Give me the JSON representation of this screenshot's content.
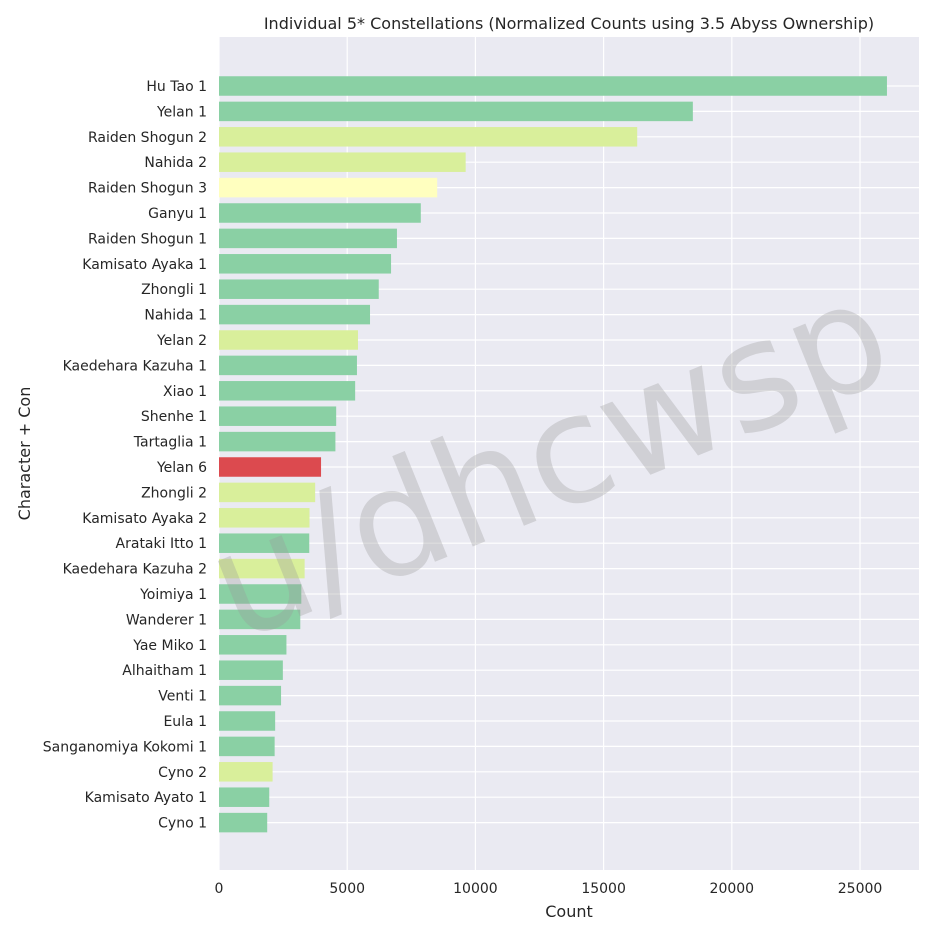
{
  "chart_data": {
    "type": "bar",
    "orientation": "horizontal",
    "title": "Individual 5* Constellations (Normalized Counts using 3.5 Abyss Ownership)",
    "xlabel": "Count",
    "ylabel": "Character + Con",
    "xlim": [
      0,
      27300
    ],
    "xticks": [
      0,
      5000,
      10000,
      15000,
      20000,
      25000
    ],
    "grid": true,
    "watermark": "u/dhcwsp",
    "colors": {
      "background": "#eaeaf2",
      "grid": "#ffffff",
      "c1": "#8ad0a4",
      "c2": "#d9ef9b",
      "c3": "#ffffbf",
      "c6": "#dc4a4f"
    },
    "categories": [
      "Hu Tao 1",
      "Yelan 1",
      "Raiden Shogun 2",
      "Nahida 2",
      "Raiden Shogun 3",
      "Ganyu 1",
      "Raiden Shogun 1",
      "Kamisato Ayaka 1",
      "Zhongli 1",
      "Nahida 1",
      "Yelan 2",
      "Kaedehara Kazuha 1",
      "Xiao 1",
      "Shenhe 1",
      "Tartaglia 1",
      "Yelan 6",
      "Zhongli 2",
      "Kamisato Ayaka 2",
      "Arataki Itto 1",
      "Kaedehara Kazuha 2",
      "Yoimiya 1",
      "Wanderer 1",
      "Yae Miko 1",
      "Alhaitham 1",
      "Venti 1",
      "Eula 1",
      "Sanganomiya Kokomi 1",
      "Cyno 2",
      "Kamisato Ayato 1",
      "Cyno 1"
    ],
    "values": [
      26050,
      18480,
      16310,
      9620,
      8510,
      7870,
      6940,
      6710,
      6230,
      5890,
      5420,
      5380,
      5310,
      4570,
      4540,
      3980,
      3750,
      3530,
      3520,
      3340,
      3210,
      3170,
      2630,
      2490,
      2420,
      2190,
      2170,
      2090,
      1960,
      1880
    ],
    "bar_colors": [
      "c1",
      "c1",
      "c2",
      "c2",
      "c3",
      "c1",
      "c1",
      "c1",
      "c1",
      "c1",
      "c2",
      "c1",
      "c1",
      "c1",
      "c1",
      "c6",
      "c2",
      "c2",
      "c1",
      "c2",
      "c1",
      "c1",
      "c1",
      "c1",
      "c1",
      "c1",
      "c1",
      "c2",
      "c1",
      "c1"
    ]
  }
}
